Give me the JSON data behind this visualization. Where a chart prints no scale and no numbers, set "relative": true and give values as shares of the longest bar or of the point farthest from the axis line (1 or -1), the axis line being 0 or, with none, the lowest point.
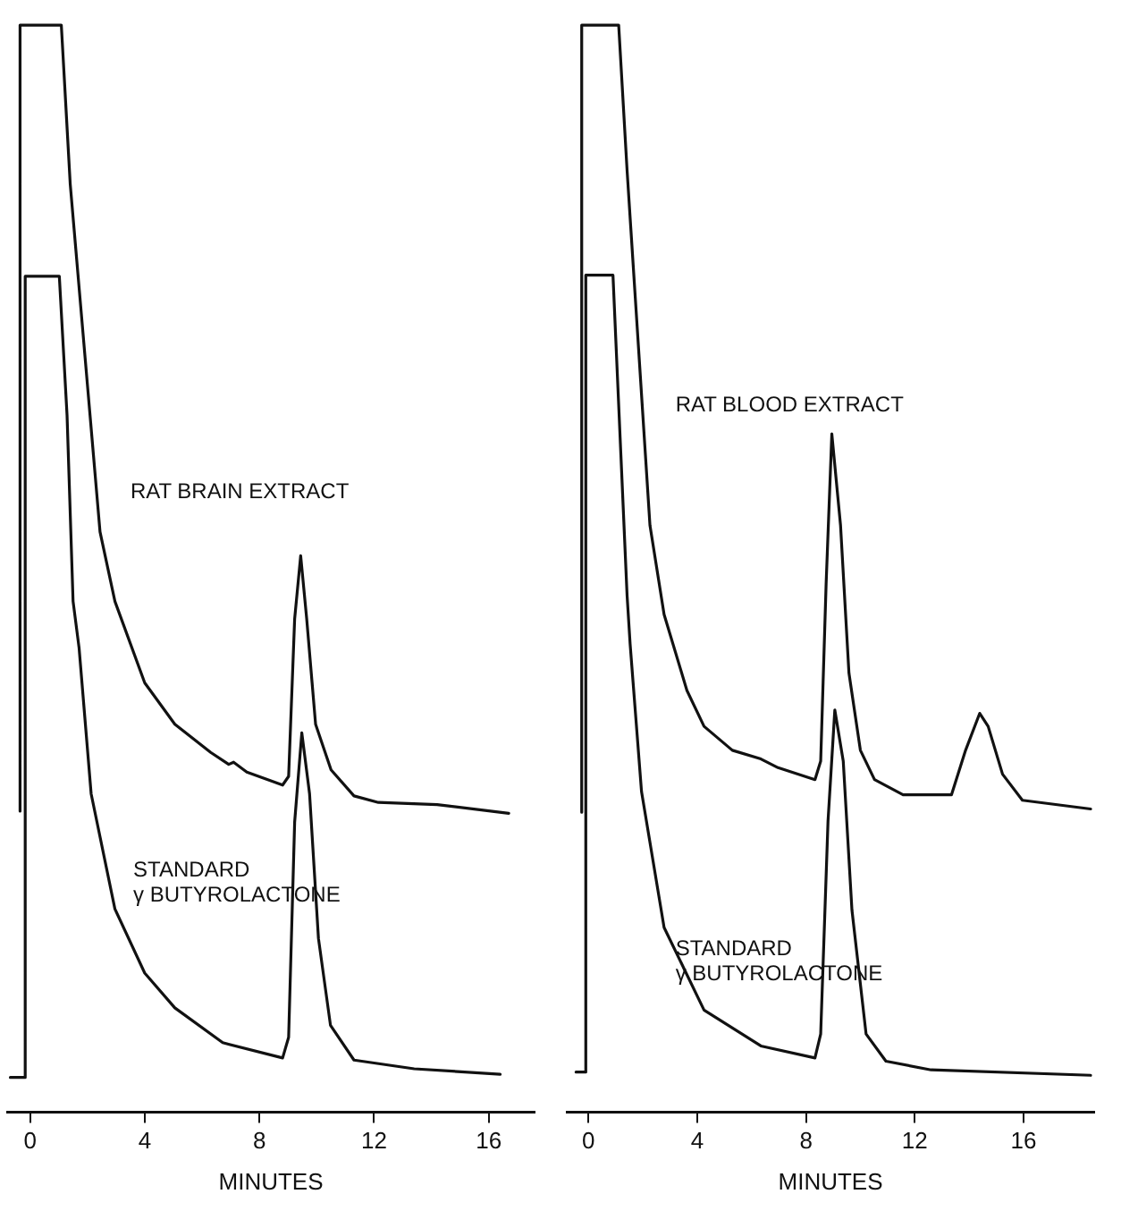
{
  "chart_data": [
    {
      "type": "line",
      "relative": true,
      "xlabel": "MINUTES",
      "xlim": [
        -0.8,
        17.6
      ],
      "xticks": [
        0,
        4,
        8,
        12,
        16
      ],
      "grid": false,
      "legend": false,
      "marker": "none",
      "line_style": "solid",
      "series": [
        {
          "name": "RAT BRAIN EXTRACT",
          "color": "#111111",
          "x": [
            -0.35,
            -0.35,
            1.09,
            1.4,
            1.92,
            2.44,
            2.96,
            4.0,
            5.05,
            6.3,
            6.93,
            7.1,
            7.56,
            8.81,
            9.02,
            9.23,
            9.44,
            9.65,
            9.96,
            10.5,
            11.3,
            12.15,
            14.2,
            16.7
          ],
          "values": [
            0.277,
            1.0,
            1.0,
            0.854,
            0.694,
            0.534,
            0.47,
            0.395,
            0.357,
            0.331,
            0.32,
            0.322,
            0.313,
            0.301,
            0.309,
            0.454,
            0.512,
            0.454,
            0.357,
            0.315,
            0.291,
            0.285,
            0.283,
            0.275
          ]
        },
        {
          "name": "STANDARD\nγ BUTYROLACTONE",
          "color": "#111111",
          "x": [
            -0.69,
            -0.17,
            -0.17,
            1.02,
            1.29,
            1.5,
            1.71,
            2.13,
            2.96,
            4.0,
            5.05,
            6.72,
            8.81,
            9.02,
            9.23,
            9.48,
            9.75,
            10.06,
            10.48,
            11.3,
            13.4,
            16.4
          ],
          "values": [
            0.032,
            0.032,
            0.769,
            0.769,
            0.641,
            0.47,
            0.427,
            0.293,
            0.187,
            0.128,
            0.096,
            0.064,
            0.05,
            0.069,
            0.267,
            0.349,
            0.293,
            0.16,
            0.08,
            0.048,
            0.04,
            0.035
          ]
        }
      ]
    },
    {
      "type": "line",
      "relative": true,
      "xlabel": "MINUTES",
      "xlim": [
        -0.8,
        18.6
      ],
      "xticks": [
        0,
        4,
        8,
        12,
        16
      ],
      "grid": false,
      "legend": false,
      "marker": "none",
      "line_style": "solid",
      "series": [
        {
          "name": "RAT BLOOD EXTRACT",
          "color": "#111111",
          "x": [
            -0.25,
            -0.25,
            1.11,
            1.42,
            1.84,
            2.26,
            2.78,
            3.62,
            4.25,
            5.29,
            6.34,
            6.97,
            8.33,
            8.54,
            8.74,
            8.95,
            9.27,
            9.58,
            10.0,
            10.52,
            11.57,
            13.35,
            13.87,
            14.39,
            14.7,
            15.23,
            15.96,
            18.47
          ],
          "values": [
            0.276,
            1.0,
            1.0,
            0.866,
            0.703,
            0.54,
            0.458,
            0.388,
            0.355,
            0.333,
            0.325,
            0.317,
            0.306,
            0.323,
            0.486,
            0.624,
            0.54,
            0.404,
            0.333,
            0.306,
            0.292,
            0.292,
            0.333,
            0.367,
            0.355,
            0.311,
            0.287,
            0.279
          ]
        },
        {
          "name": "STANDARD\nγ BUTYROLACTONE",
          "color": "#111111",
          "x": [
            -0.46,
            -0.1,
            -0.1,
            0.9,
            1.21,
            1.42,
            1.53,
            1.95,
            2.78,
            4.25,
            6.34,
            8.33,
            8.54,
            8.81,
            9.06,
            9.37,
            9.69,
            10.21,
            10.94,
            12.6,
            18.47
          ],
          "values": [
            0.037,
            0.037,
            0.77,
            0.77,
            0.594,
            0.475,
            0.431,
            0.295,
            0.17,
            0.094,
            0.061,
            0.05,
            0.072,
            0.268,
            0.37,
            0.323,
            0.186,
            0.072,
            0.047,
            0.039,
            0.034
          ]
        }
      ]
    }
  ]
}
